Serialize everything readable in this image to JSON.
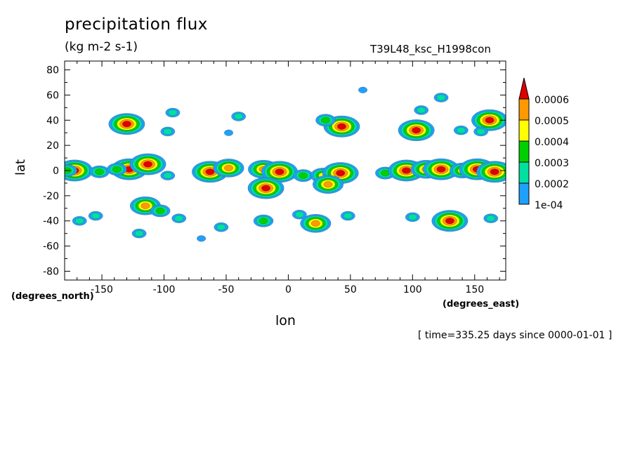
{
  "chart_data": {
    "type": "heatmap",
    "title": "precipitation flux",
    "units": "(kg m-2 s-1)",
    "run_label": "T39L48_ksc_H1998con",
    "xlabel": "lon",
    "ylabel": "lat",
    "xunit": "(degrees_east)",
    "yunit": "(degrees_north)",
    "timestamp": "[ time=335.25 days since 0000-01-01 ]",
    "xlim": [
      -180,
      175
    ],
    "ylim": [
      -87,
      87
    ],
    "xticks": [
      -150,
      -100,
      -50,
      0,
      50,
      100,
      150
    ],
    "xtick_labels": [
      "-150",
      "-100",
      "-50",
      "0",
      "50",
      "100",
      "150"
    ],
    "yticks": [
      80,
      60,
      40,
      20,
      0,
      -20,
      -40,
      -60,
      -80
    ],
    "ytick_labels": [
      "80",
      "60",
      "40",
      "20",
      "0",
      "-20",
      "-40",
      "-60",
      "-80"
    ],
    "colorbar": {
      "levels": [
        "1e-04",
        "0.0002",
        "0.0003",
        "0.0004",
        "0.0005",
        "0.0006"
      ],
      "colors": [
        "#1ea0ff",
        "#00e0a0",
        "#00d000",
        "#ffff00",
        "#ff9900",
        "#e00000"
      ],
      "extend": "max"
    },
    "cells": [
      {
        "lon": -172,
        "lat": 0,
        "level": 5
      },
      {
        "lon": -178,
        "lat": 0,
        "level": 2
      },
      {
        "lon": -152,
        "lat": -1,
        "level": 2
      },
      {
        "lon": -130,
        "lat": 37,
        "level": 5
      },
      {
        "lon": -128,
        "lat": 1,
        "level": 5
      },
      {
        "lon": -138,
        "lat": 1,
        "level": 2
      },
      {
        "lon": -113,
        "lat": 5,
        "level": 5
      },
      {
        "lon": -97,
        "lat": 31,
        "level": 1
      },
      {
        "lon": -93,
        "lat": 46,
        "level": 1
      },
      {
        "lon": -97,
        "lat": -4,
        "level": 1
      },
      {
        "lon": -63,
        "lat": -1,
        "level": 5
      },
      {
        "lon": -48,
        "lat": 2,
        "level": 4
      },
      {
        "lon": -40,
        "lat": 43,
        "level": 1
      },
      {
        "lon": -48,
        "lat": 30,
        "level": 0
      },
      {
        "lon": -20,
        "lat": 1,
        "level": 4
      },
      {
        "lon": -7,
        "lat": -1,
        "level": 5
      },
      {
        "lon": -18,
        "lat": -14,
        "level": 5
      },
      {
        "lon": 12,
        "lat": -4,
        "level": 2
      },
      {
        "lon": 28,
        "lat": -4,
        "level": 3
      },
      {
        "lon": 42,
        "lat": -2,
        "level": 5
      },
      {
        "lon": 32,
        "lat": -11,
        "level": 4
      },
      {
        "lon": 43,
        "lat": 35,
        "level": 5
      },
      {
        "lon": 30,
        "lat": 40,
        "level": 2
      },
      {
        "lon": 60,
        "lat": 64,
        "level": 0
      },
      {
        "lon": 78,
        "lat": -2,
        "level": 2
      },
      {
        "lon": 95,
        "lat": 0,
        "level": 5
      },
      {
        "lon": 103,
        "lat": 32,
        "level": 5
      },
      {
        "lon": 111,
        "lat": 1,
        "level": 4
      },
      {
        "lon": 123,
        "lat": 1,
        "level": 5
      },
      {
        "lon": 123,
        "lat": 58,
        "level": 1
      },
      {
        "lon": 107,
        "lat": 48,
        "level": 1
      },
      {
        "lon": 140,
        "lat": 0,
        "level": 3
      },
      {
        "lon": 152,
        "lat": 1,
        "level": 5
      },
      {
        "lon": 166,
        "lat": -1,
        "level": 5
      },
      {
        "lon": 162,
        "lat": 40,
        "level": 5
      },
      {
        "lon": 139,
        "lat": 32,
        "level": 1
      },
      {
        "lon": 155,
        "lat": 31,
        "level": 1
      },
      {
        "lon": -168,
        "lat": -40,
        "level": 1
      },
      {
        "lon": -155,
        "lat": -36,
        "level": 1
      },
      {
        "lon": -115,
        "lat": -28,
        "level": 4
      },
      {
        "lon": -103,
        "lat": -32,
        "level": 2
      },
      {
        "lon": -88,
        "lat": -38,
        "level": 1
      },
      {
        "lon": -54,
        "lat": -45,
        "level": 1
      },
      {
        "lon": -20,
        "lat": -40,
        "level": 2
      },
      {
        "lon": 9,
        "lat": -35,
        "level": 1
      },
      {
        "lon": 22,
        "lat": -42,
        "level": 4
      },
      {
        "lon": 48,
        "lat": -36,
        "level": 1
      },
      {
        "lon": 100,
        "lat": -37,
        "level": 1
      },
      {
        "lon": 130,
        "lat": -40,
        "level": 5
      },
      {
        "lon": 163,
        "lat": -38,
        "level": 1
      },
      {
        "lon": -120,
        "lat": -50,
        "level": 1
      },
      {
        "lon": -70,
        "lat": -54,
        "level": 0
      }
    ]
  }
}
